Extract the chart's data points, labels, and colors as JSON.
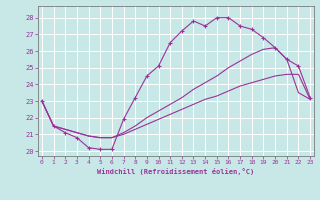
{
  "xlabel": "Windchill (Refroidissement éolien,°C)",
  "bg_color": "#c8e8e8",
  "grid_color": "#ffffff",
  "line_color": "#993399",
  "ylim": [
    19.7,
    28.7
  ],
  "xlim": [
    -0.3,
    23.3
  ],
  "yticks": [
    20,
    21,
    22,
    23,
    24,
    25,
    26,
    27,
    28
  ],
  "xticks": [
    0,
    1,
    2,
    3,
    4,
    5,
    6,
    7,
    8,
    9,
    10,
    11,
    12,
    13,
    14,
    15,
    16,
    17,
    18,
    19,
    20,
    21,
    22,
    23
  ],
  "curve1_x": [
    0,
    1,
    2,
    3,
    4,
    5,
    6,
    7,
    8,
    9,
    10,
    11,
    12,
    13,
    14,
    15,
    16,
    17,
    18,
    19,
    20,
    21,
    22,
    23
  ],
  "curve1_y": [
    23.0,
    21.5,
    21.1,
    20.8,
    20.2,
    20.1,
    20.1,
    21.9,
    23.2,
    24.5,
    25.1,
    26.5,
    27.2,
    27.8,
    27.5,
    28.0,
    28.0,
    27.5,
    27.3,
    26.8,
    26.2,
    25.5,
    25.1,
    23.2
  ],
  "curve2_x": [
    0,
    1,
    2,
    3,
    4,
    5,
    6,
    7,
    8,
    9,
    10,
    11,
    12,
    13,
    14,
    15,
    16,
    17,
    18,
    19,
    20,
    21,
    22,
    23
  ],
  "curve2_y": [
    23.0,
    21.5,
    21.3,
    21.1,
    20.9,
    20.8,
    20.8,
    21.0,
    21.3,
    21.6,
    21.9,
    22.2,
    22.5,
    22.8,
    23.1,
    23.3,
    23.6,
    23.9,
    24.1,
    24.3,
    24.5,
    24.6,
    24.6,
    23.1
  ],
  "curve3_x": [
    0,
    1,
    2,
    3,
    4,
    5,
    6,
    7,
    8,
    9,
    10,
    11,
    12,
    13,
    14,
    15,
    16,
    17,
    18,
    19,
    20,
    21,
    22,
    23
  ],
  "curve3_y": [
    23.0,
    21.5,
    21.3,
    21.1,
    20.9,
    20.8,
    20.8,
    21.1,
    21.5,
    22.0,
    22.4,
    22.8,
    23.2,
    23.7,
    24.1,
    24.5,
    25.0,
    25.4,
    25.8,
    26.1,
    26.2,
    25.5,
    23.5,
    23.1
  ]
}
